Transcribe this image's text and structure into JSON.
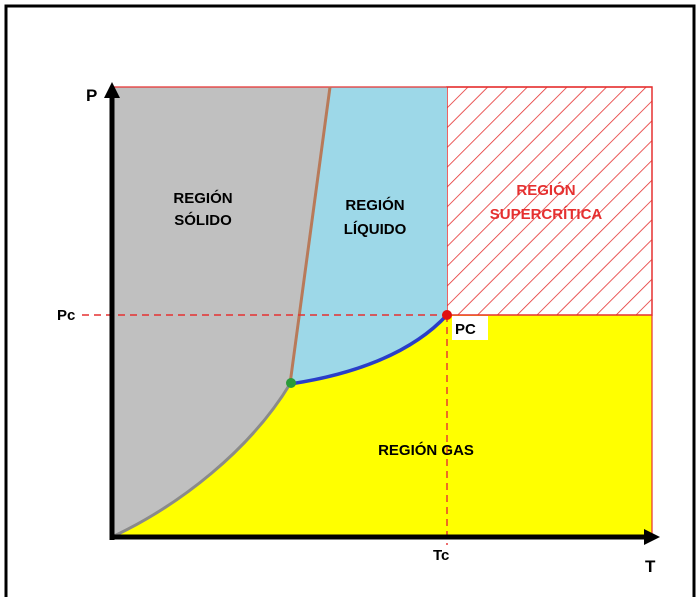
{
  "axes": {
    "y_label": "P",
    "x_label": "T",
    "y_tick": "Pc",
    "x_tick": "Tc"
  },
  "regions": {
    "solid": {
      "line1": "REGIÓN",
      "line2": "SÓLIDO",
      "color": "#c0c0c0"
    },
    "liquid": {
      "line1": "REGIÓN",
      "line2": "LÍQUIDO",
      "color": "#9dd8e8"
    },
    "supercritical": {
      "line1": "REGIÓN",
      "line2": "SUPERCRÍTICA",
      "color": "#e53030"
    },
    "gas": {
      "label": "REGIÓN GAS",
      "color": "#ffff00"
    }
  },
  "points": {
    "critical": {
      "label": "PC",
      "color": "#e01010"
    },
    "triple": {
      "color": "#2a9a3a"
    }
  },
  "curves": {
    "fusion_color": "#b87a5a",
    "vaporization_color": "#2a3ec8",
    "sublimation_color": "#8a8a8a"
  }
}
